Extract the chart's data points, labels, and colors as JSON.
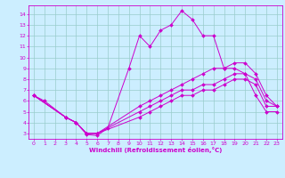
{
  "xlabel": "Windchill (Refroidissement éolien,°C)",
  "bg_color": "#cceeff",
  "line_color": "#cc00cc",
  "grid_color": "#99cccc",
  "xlim": [
    -0.5,
    23.5
  ],
  "ylim": [
    2.5,
    14.8
  ],
  "xticks": [
    0,
    1,
    2,
    3,
    4,
    5,
    6,
    7,
    8,
    9,
    10,
    11,
    12,
    13,
    14,
    15,
    16,
    17,
    18,
    19,
    20,
    21,
    22,
    23
  ],
  "yticks": [
    3,
    4,
    5,
    6,
    7,
    8,
    9,
    10,
    11,
    12,
    13,
    14
  ],
  "series": [
    {
      "x": [
        0,
        1,
        3,
        4,
        5,
        6,
        7,
        9,
        10,
        11,
        12,
        13,
        14,
        15,
        16,
        17,
        18,
        19,
        20,
        21,
        22,
        23
      ],
      "y": [
        6.5,
        6.0,
        4.5,
        4.0,
        2.9,
        2.8,
        3.5,
        9.0,
        12.0,
        11.0,
        12.5,
        13.0,
        14.3,
        13.5,
        12.0,
        12.0,
        9.0,
        9.0,
        8.5,
        6.5,
        5.0,
        5.0
      ]
    },
    {
      "x": [
        0,
        3,
        4,
        5,
        6,
        10,
        11,
        12,
        13,
        14,
        15,
        16,
        17,
        18,
        19,
        20,
        21,
        22,
        23
      ],
      "y": [
        6.5,
        4.5,
        4.0,
        3.0,
        3.0,
        5.5,
        6.0,
        6.5,
        7.0,
        7.5,
        8.0,
        8.5,
        9.0,
        9.0,
        9.5,
        9.5,
        8.5,
        6.5,
        5.5
      ]
    },
    {
      "x": [
        0,
        3,
        4,
        5,
        6,
        10,
        11,
        12,
        13,
        14,
        15,
        16,
        17,
        18,
        19,
        20,
        21,
        22,
        23
      ],
      "y": [
        6.5,
        4.5,
        4.0,
        3.0,
        3.0,
        5.0,
        5.5,
        6.0,
        6.5,
        7.0,
        7.0,
        7.5,
        7.5,
        8.0,
        8.5,
        8.5,
        8.0,
        6.0,
        5.5
      ]
    },
    {
      "x": [
        0,
        3,
        4,
        5,
        6,
        10,
        11,
        12,
        13,
        14,
        15,
        16,
        17,
        18,
        19,
        20,
        21,
        22,
        23
      ],
      "y": [
        6.5,
        4.5,
        4.0,
        3.0,
        3.0,
        4.5,
        5.0,
        5.5,
        6.0,
        6.5,
        6.5,
        7.0,
        7.0,
        7.5,
        8.0,
        8.0,
        7.5,
        5.5,
        5.5
      ]
    }
  ]
}
